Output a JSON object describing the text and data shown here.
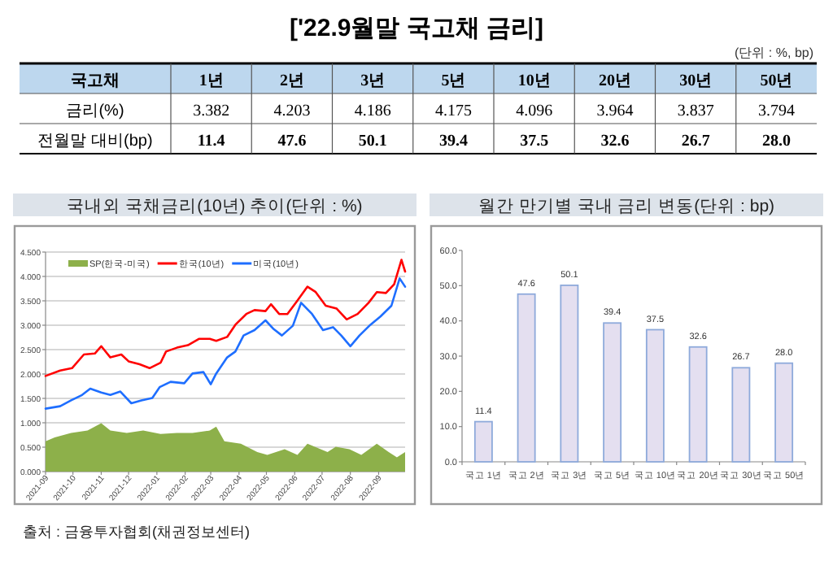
{
  "chart_data": [
    {
      "type": "other",
      "title": "['22.9월말 국고채 금리]",
      "subtitle": "(단위 : %, bp)",
      "xlabel": "국고채",
      "categories": [
        "1년",
        "2년",
        "3년",
        "5년",
        "10년",
        "20년",
        "30년",
        "50년"
      ],
      "series": [
        {
          "name": "금리(%)",
          "values": [
            3.382,
            4.203,
            4.186,
            4.175,
            4.096,
            3.964,
            3.837,
            3.794
          ],
          "value_labels": [
            "3.382",
            "4.203",
            "4.186",
            "4.175",
            "4.096",
            "3.964",
            "3.837",
            "3.794"
          ]
        },
        {
          "name": "전월말 대비(bp)",
          "values": [
            11.4,
            47.6,
            50.1,
            39.4,
            37.5,
            32.6,
            26.7,
            28.0
          ],
          "value_labels": [
            "11.4",
            "47.6",
            "50.1",
            "39.4",
            "37.5",
            "32.6",
            "26.7",
            "28.0"
          ]
        }
      ]
    },
    {
      "type": "line",
      "title": "국내외 국채금리(10년) 추이(단위 : %)",
      "xlim": [
        "2021-09-01",
        "2022-09-30"
      ],
      "xticks": [
        {
          "value": "2021-09",
          "label": "2021-09"
        },
        {
          "value": "2021-10",
          "label": "2021-10"
        },
        {
          "value": "2021-11",
          "label": "2021-11"
        },
        {
          "value": "2021-12",
          "label": "2021-12"
        },
        {
          "value": "2022-01",
          "label": "2022-01"
        },
        {
          "value": "2022-02",
          "label": "2022-02"
        },
        {
          "value": "2022-03",
          "label": "2022-03"
        },
        {
          "value": "2022-04",
          "label": "2022-04"
        },
        {
          "value": "2022-05",
          "label": "2022-05"
        },
        {
          "value": "2022-06",
          "label": "2022-06"
        },
        {
          "value": "2022-07",
          "label": "2022-07"
        },
        {
          "value": "2022-08",
          "label": "2022-08"
        },
        {
          "value": "2022-09",
          "label": "2022-09"
        }
      ],
      "ylim": [
        0,
        4.5
      ],
      "yticks": [
        {
          "value": 0,
          "label": "0.000"
        },
        {
          "value": 0.5,
          "label": "0.500"
        },
        {
          "value": 1,
          "label": "1.000"
        },
        {
          "value": 1.5,
          "label": "1.500"
        },
        {
          "value": 2,
          "label": "2.000"
        },
        {
          "value": 2.5,
          "label": "2.500"
        },
        {
          "value": 3,
          "label": "3.000"
        },
        {
          "value": 3.5,
          "label": "3.500"
        },
        {
          "value": 4,
          "label": "4.000"
        },
        {
          "value": 4.5,
          "label": "4.500"
        }
      ],
      "grid": "y",
      "legend": "top left",
      "series": [
        {
          "name": "SP(한국-미국)",
          "type": "area",
          "color": "#8db04a",
          "x": [
            "2021-09-01",
            "2021-09-11",
            "2021-09-29",
            "2021-10-17",
            "2021-11-01",
            "2021-11-11",
            "2021-11-29",
            "2021-12-17",
            "2022-01-05",
            "2022-01-23",
            "2022-02-09",
            "2022-02-28",
            "2022-03-07",
            "2022-03-16",
            "2022-04-03",
            "2022-04-21",
            "2022-05-02",
            "2022-05-21",
            "2022-06-04",
            "2022-06-15",
            "2022-07-07",
            "2022-07-16",
            "2022-07-31",
            "2022-08-13",
            "2022-08-30",
            "2022-09-12",
            "2022-09-21",
            "2022-09-30"
          ],
          "values": [
            0.62,
            0.7,
            0.79,
            0.84,
            0.99,
            0.84,
            0.79,
            0.84,
            0.77,
            0.79,
            0.79,
            0.84,
            0.92,
            0.62,
            0.57,
            0.4,
            0.34,
            0.46,
            0.34,
            0.57,
            0.4,
            0.51,
            0.46,
            0.34,
            0.57,
            0.4,
            0.29,
            0.4
          ]
        },
        {
          "name": "한국(10년)",
          "color": "#ff0000",
          "x": [
            "2021-09-01",
            "2021-09-17",
            "2021-09-30",
            "2021-10-13",
            "2021-10-25",
            "2021-11-01",
            "2021-11-11",
            "2021-11-23",
            "2021-12-01",
            "2021-12-13",
            "2021-12-24",
            "2022-01-05",
            "2022-01-11",
            "2022-01-23",
            "2022-02-04",
            "2022-02-16",
            "2022-02-28",
            "2022-03-07",
            "2022-03-19",
            "2022-03-28",
            "2022-04-09",
            "2022-04-18",
            "2022-04-30",
            "2022-05-06",
            "2022-05-15",
            "2022-05-24",
            "2022-06-03",
            "2022-06-15",
            "2022-06-24",
            "2022-07-05",
            "2022-07-17",
            "2022-07-28",
            "2022-08-09",
            "2022-08-21",
            "2022-08-30",
            "2022-09-09",
            "2022-09-18",
            "2022-09-26",
            "2022-09-30"
          ],
          "values": [
            1.96,
            2.07,
            2.12,
            2.4,
            2.42,
            2.57,
            2.34,
            2.4,
            2.26,
            2.2,
            2.12,
            2.23,
            2.46,
            2.54,
            2.59,
            2.72,
            2.72,
            2.68,
            2.76,
            3.01,
            3.23,
            3.31,
            3.29,
            3.43,
            3.23,
            3.23,
            3.48,
            3.79,
            3.68,
            3.4,
            3.34,
            3.12,
            3.23,
            3.46,
            3.68,
            3.66,
            3.84,
            4.34,
            4.1
          ]
        },
        {
          "name": "미국(10년)",
          "color": "#1e6eff",
          "x": [
            "2021-09-01",
            "2021-09-17",
            "2021-09-29",
            "2021-10-11",
            "2021-10-20",
            "2021-11-01",
            "2021-11-11",
            "2021-11-22",
            "2021-12-04",
            "2021-12-15",
            "2021-12-27",
            "2022-01-04",
            "2022-01-16",
            "2022-01-31",
            "2022-02-09",
            "2022-02-21",
            "2022-03-01",
            "2022-03-07",
            "2022-03-19",
            "2022-03-28",
            "2022-04-06",
            "2022-04-18",
            "2022-04-30",
            "2022-05-09",
            "2022-05-18",
            "2022-05-30",
            "2022-06-08",
            "2022-06-20",
            "2022-07-02",
            "2022-07-13",
            "2022-07-22",
            "2022-08-01",
            "2022-08-11",
            "2022-08-23",
            "2022-09-03",
            "2022-09-15",
            "2022-09-24",
            "2022-09-30"
          ],
          "values": [
            1.29,
            1.34,
            1.46,
            1.57,
            1.7,
            1.62,
            1.57,
            1.64,
            1.4,
            1.46,
            1.51,
            1.73,
            1.84,
            1.81,
            2.01,
            2.04,
            1.79,
            2.01,
            2.34,
            2.46,
            2.79,
            2.9,
            3.1,
            2.92,
            2.79,
            2.99,
            3.46,
            3.23,
            2.9,
            2.96,
            2.79,
            2.57,
            2.79,
            3.01,
            3.18,
            3.4,
            3.96,
            3.79
          ]
        }
      ],
      "annotations": [
        "출처 : 금융투자협회(채권정보센터)"
      ]
    },
    {
      "type": "bar",
      "title": "월간 만기별 국내 금리 변동(단위 : bp)",
      "categories": [
        "국고 1년",
        "국고 2년",
        "국고 3년",
        "국고 5년",
        "국고 10년",
        "국고 20년",
        "국고 30년",
        "국고 50년"
      ],
      "values": [
        11.4,
        47.6,
        50.1,
        39.4,
        37.5,
        32.6,
        26.7,
        28.0
      ],
      "value_labels": [
        "11.4",
        "47.6",
        "50.1",
        "39.4",
        "37.5",
        "32.6",
        "26.7",
        "28.0"
      ],
      "color": "#e4dff0",
      "ylim": [
        0,
        60
      ],
      "yticks": [
        {
          "value": 0,
          "label": "0.0"
        },
        {
          "value": 10,
          "label": "10.0"
        },
        {
          "value": 20,
          "label": "20.0"
        },
        {
          "value": 30,
          "label": "30.0"
        },
        {
          "value": 40,
          "label": "40.0"
        },
        {
          "value": 50,
          "label": "50.0"
        },
        {
          "value": 60,
          "label": "60.0"
        }
      ]
    }
  ]
}
